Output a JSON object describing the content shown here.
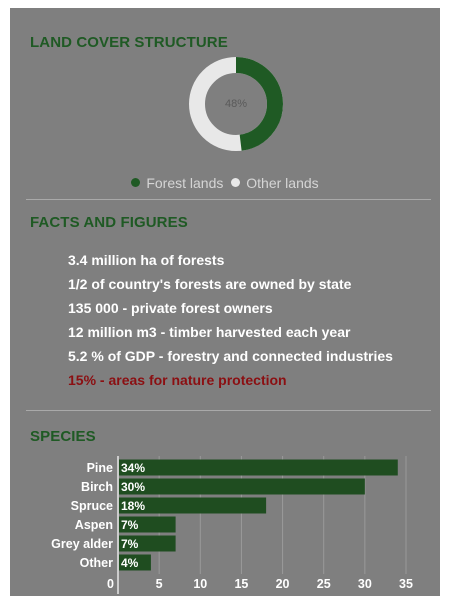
{
  "land_cover": {
    "title": "LAND COVER STRUCTURE",
    "donut": {
      "label": "48%",
      "forest_fraction": 0.48,
      "colors": {
        "forest": "#1f5a24",
        "other": "#e8e8e8"
      }
    },
    "legend": {
      "forest_label": "Forest lands",
      "other_label": "Other lands"
    }
  },
  "facts": {
    "title": "FACTS AND FIGURES",
    "items": [
      {
        "text": "3.4 million ha of forests",
        "highlight": false
      },
      {
        "text": "1/2 of country's forests are owned by state",
        "highlight": false
      },
      {
        "text": "135 000 - private forest owners",
        "highlight": false
      },
      {
        "text": "12 million m3 - timber harvested each year",
        "highlight": false
      },
      {
        "text": "5.2 % of GDP - forestry and connected industries",
        "highlight": false
      },
      {
        "text": "15% - areas for nature protection",
        "highlight": true
      }
    ],
    "highlight_color": "#8b0f12"
  },
  "species": {
    "title": "SPECIES"
  },
  "chart_data": {
    "type": "bar",
    "orientation": "horizontal",
    "categories": [
      "Pine",
      "Birch",
      "Spruce",
      "Aspen",
      "Grey alder",
      "Other"
    ],
    "values": [
      34,
      30,
      18,
      7,
      7,
      4
    ],
    "data_labels": [
      "34%",
      "30%",
      "18%",
      "7%",
      "7%",
      "4%"
    ],
    "xlim": [
      0,
      35
    ],
    "xticks": [
      0,
      5,
      10,
      15,
      20,
      25,
      30,
      35
    ],
    "grid": true,
    "bar_color": "#1f4d20"
  }
}
